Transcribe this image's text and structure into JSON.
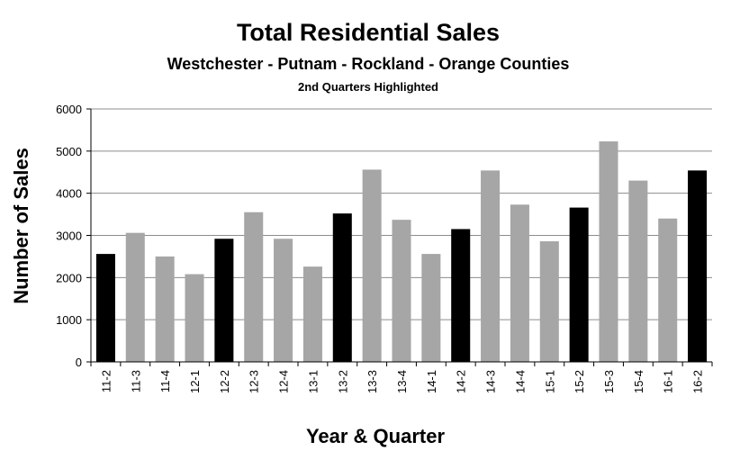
{
  "chart_data": {
    "type": "bar",
    "title": "Total Residential Sales",
    "subtitle": "Westchester - Putnam - Rockland - Orange Counties",
    "subtitle2": "2nd Quarters Highlighted",
    "xlabel": "Year & Quarter",
    "ylabel": "Number of Sales",
    "ylim": [
      0,
      6000
    ],
    "y_ticks": [
      0,
      1000,
      2000,
      3000,
      4000,
      5000,
      6000
    ],
    "grid": true,
    "legend": "none",
    "colors": {
      "highlight": "#000000",
      "normal": "#a6a6a6",
      "grid": "#8c8c8c"
    },
    "categories": [
      "11-2",
      "11-3",
      "11-4",
      "12-1",
      "12-2",
      "12-3",
      "12-4",
      "13-1",
      "13-2",
      "13-3",
      "13-4",
      "14-1",
      "14-2",
      "14-3",
      "14-4",
      "15-1",
      "15-2",
      "15-3",
      "15-4",
      "16-1",
      "16-2"
    ],
    "values": [
      2560,
      3060,
      2500,
      2080,
      2920,
      3550,
      2920,
      2260,
      3520,
      4560,
      3370,
      2560,
      3150,
      4540,
      3730,
      2860,
      3660,
      5230,
      4300,
      3400,
      4540
    ],
    "highlighted": [
      true,
      false,
      false,
      false,
      true,
      false,
      false,
      false,
      true,
      false,
      false,
      false,
      true,
      false,
      false,
      false,
      true,
      false,
      false,
      false,
      true
    ]
  }
}
